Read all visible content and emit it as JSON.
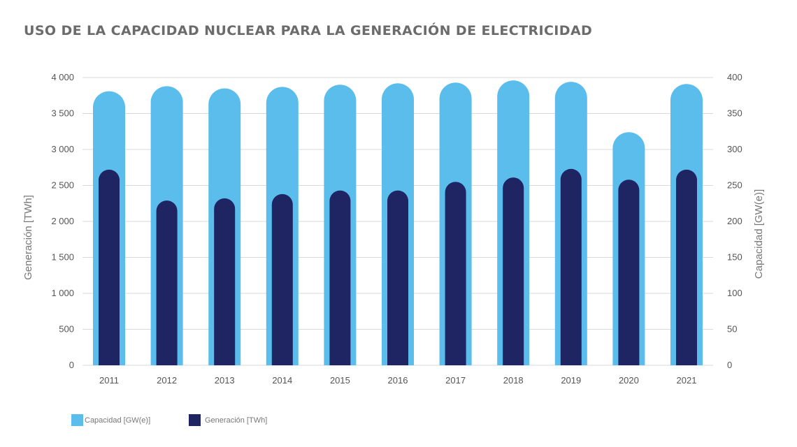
{
  "chart_data": {
    "type": "bar",
    "title": "USO DE LA CAPACIDAD NUCLEAR PARA LA GENERACIÓN DE ELECTRICIDAD",
    "categories": [
      "2011",
      "2012",
      "2013",
      "2014",
      "2015",
      "2016",
      "2017",
      "2018",
      "2019",
      "2020",
      "2021"
    ],
    "series": [
      {
        "name": "Capacidad [GW(e)]",
        "axis": "right",
        "color": "#5bbdec",
        "values": [
          381,
          388,
          385,
          387,
          390,
          392,
          393,
          396,
          394,
          324,
          391
        ]
      },
      {
        "name": "Generación [TWh]",
        "axis": "left",
        "color": "#1f2563",
        "values": [
          2720,
          2290,
          2320,
          2380,
          2430,
          2430,
          2550,
          2610,
          2730,
          2580,
          2720
        ]
      }
    ],
    "ylabel_left": "Generación [TWh]",
    "ylabel_right": "Capacidad [GW(e)]",
    "ylim_left": [
      0,
      4000
    ],
    "ylim_right": [
      0,
      400
    ],
    "yticks_left": [
      "4 000",
      "3 500",
      "3 000",
      "2 500",
      "2 000",
      "1 500",
      "1 000",
      "500",
      "0"
    ],
    "yticks_right": [
      "400",
      "350",
      "300",
      "250",
      "200",
      "150",
      "100",
      "50",
      "0"
    ],
    "grid": true,
    "legend_position": "bottom-left"
  }
}
